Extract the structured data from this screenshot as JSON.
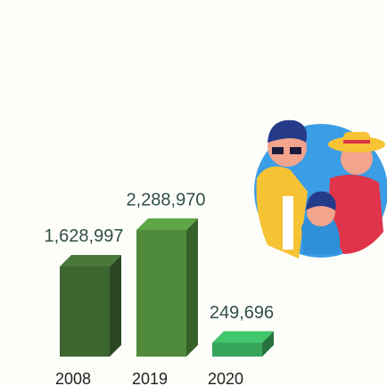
{
  "chart_data": {
    "type": "bar3d",
    "categories": [
      "2008",
      "2019",
      "2020"
    ],
    "values": [
      1628997,
      2288970,
      249696
    ],
    "value_labels": [
      "1,628,997",
      "2,288,970",
      "249,696"
    ],
    "colors": [
      "#3d6530",
      "#4f8a3b",
      "#36a55a"
    ]
  }
}
